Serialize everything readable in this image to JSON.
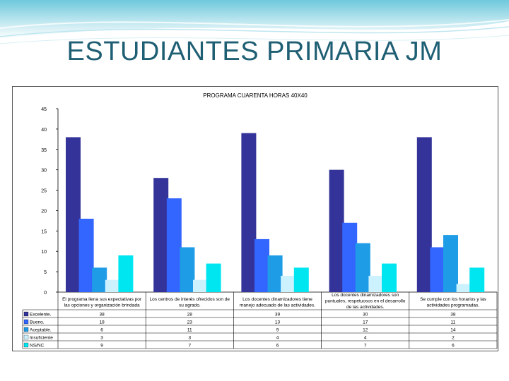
{
  "slide": {
    "title": "ESTUDIANTES PRIMARIA JM"
  },
  "chart_data": {
    "type": "bar",
    "title": "PROGRAMA CUARENTA HORAS 40X40",
    "categories": [
      [
        "El programa llena sus expectativas por",
        "las opciones y organización brindada"
      ],
      [
        "Los centros de interés ofrecidos son de",
        "su agrado."
      ],
      [
        "Los docentes dinamizadores tiene",
        "manejo adecuado de las actividades."
      ],
      [
        "Los docentes dinamizadores son",
        "puntuales, respetuosos en el desarrollo",
        "de las actividades."
      ],
      [
        "Se cumple con los horarios y las",
        "actividades programadas."
      ]
    ],
    "series": [
      {
        "name": "Excelente.",
        "color": "#333399",
        "values": [
          38,
          28,
          39,
          30,
          38
        ]
      },
      {
        "name": "Bueno.",
        "color": "#3366ff",
        "values": [
          18,
          23,
          13,
          17,
          11
        ]
      },
      {
        "name": "Aceptable.",
        "color": "#1f9ce6",
        "values": [
          6,
          11,
          9,
          12,
          14
        ]
      },
      {
        "name": "Insuficiente",
        "color": "#ccf2ff",
        "values": [
          3,
          3,
          4,
          4,
          2
        ]
      },
      {
        "name": "NS/NC",
        "color": "#00e6f0",
        "values": [
          9,
          7,
          6,
          7,
          6
        ]
      }
    ],
    "ylim": [
      0,
      45
    ],
    "yticks": [
      0,
      5,
      10,
      15,
      20,
      25,
      30,
      35,
      40,
      45
    ],
    "grid": false,
    "legend": "data-table-left"
  }
}
